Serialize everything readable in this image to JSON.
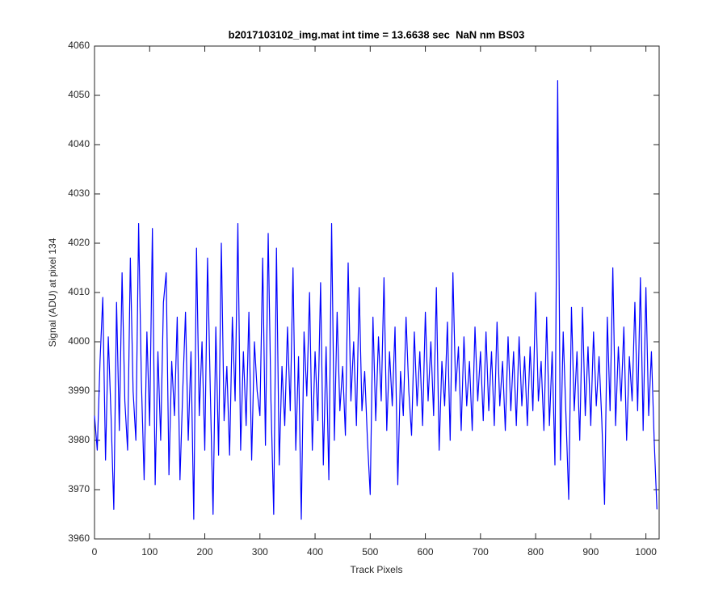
{
  "chart_data": {
    "type": "line",
    "title": "b2017103102_img.mat int time = 13.6638 sec  NaN nm BS03",
    "x_label": "Track Pixels",
    "y_label": "Signal (ADU) at pixel 134",
    "color": "#0000ff",
    "x": [
      0,
      5,
      10,
      15,
      20,
      25,
      30,
      35,
      40,
      45,
      50,
      55,
      60,
      65,
      70,
      75,
      80,
      85,
      90,
      95,
      100,
      105,
      110,
      115,
      120,
      125,
      130,
      135,
      140,
      145,
      150,
      155,
      160,
      165,
      170,
      175,
      180,
      185,
      190,
      195,
      200,
      205,
      210,
      215,
      220,
      225,
      230,
      235,
      240,
      245,
      250,
      255,
      260,
      265,
      270,
      275,
      280,
      285,
      290,
      295,
      300,
      305,
      310,
      315,
      320,
      325,
      330,
      335,
      340,
      345,
      350,
      355,
      360,
      365,
      370,
      375,
      380,
      385,
      390,
      395,
      400,
      405,
      410,
      415,
      420,
      425,
      430,
      435,
      440,
      445,
      450,
      455,
      460,
      465,
      470,
      475,
      480,
      485,
      490,
      495,
      500,
      505,
      510,
      515,
      520,
      525,
      530,
      535,
      540,
      545,
      550,
      555,
      560,
      565,
      570,
      575,
      580,
      585,
      590,
      595,
      600,
      605,
      610,
      615,
      620,
      625,
      630,
      635,
      640,
      645,
      650,
      655,
      660,
      665,
      670,
      675,
      680,
      685,
      690,
      695,
      700,
      705,
      710,
      715,
      720,
      725,
      730,
      735,
      740,
      745,
      750,
      755,
      760,
      765,
      770,
      775,
      780,
      785,
      790,
      795,
      800,
      805,
      810,
      815,
      820,
      825,
      830,
      835,
      840,
      845,
      850,
      855,
      860,
      865,
      870,
      875,
      880,
      885,
      890,
      895,
      900,
      905,
      910,
      915,
      920,
      925,
      930,
      935,
      940,
      945,
      950,
      955,
      960,
      965,
      970,
      975,
      980,
      985,
      990,
      995,
      1000,
      1005,
      1010,
      1015,
      1020
    ],
    "values": [
      3985,
      3978,
      3996,
      4009,
      3976,
      4001,
      3985,
      3966,
      4008,
      3982,
      4014,
      3988,
      3978,
      4017,
      3990,
      3980,
      4024,
      3992,
      3972,
      4002,
      3983,
      4023,
      3971,
      3998,
      3980,
      4008,
      4014,
      3973,
      3996,
      3985,
      4005,
      3972,
      3990,
      4006,
      3980,
      3998,
      3964,
      4019,
      3985,
      4000,
      3978,
      4017,
      3990,
      3965,
      4003,
      3977,
      4020,
      3984,
      3995,
      3977,
      4005,
      3988,
      4024,
      3978,
      3998,
      3983,
      4006,
      3976,
      4000,
      3990,
      3985,
      4017,
      3979,
      4022,
      3988,
      3965,
      4019,
      3975,
      3995,
      3983,
      4003,
      3986,
      4015,
      3978,
      3997,
      3964,
      4002,
      3989,
      4010,
      3978,
      3998,
      3984,
      4012,
      3975,
      3999,
      3972,
      4024,
      3980,
      4006,
      3986,
      3995,
      3981,
      4016,
      3988,
      4000,
      3983,
      4011,
      3986,
      3994,
      3980,
      3969,
      4005,
      3984,
      4001,
      3988,
      4013,
      3982,
      3998,
      3987,
      4003,
      3971,
      3994,
      3985,
      4005,
      3990,
      3981,
      4002,
      3987,
      3998,
      3983,
      4006,
      3988,
      4000,
      3985,
      4011,
      3978,
      3996,
      3987,
      4004,
      3980,
      4014,
      3990,
      3999,
      3982,
      4001,
      3987,
      3996,
      3982,
      4003,
      3988,
      3998,
      3984,
      4002,
      3986,
      3998,
      3983,
      4004,
      3987,
      3996,
      3982,
      4001,
      3986,
      3998,
      3983,
      4001,
      3987,
      3997,
      3983,
      3999,
      3986,
      4010,
      3988,
      3996,
      3982,
      4005,
      3983,
      3998,
      3975,
      4053,
      3976,
      4002,
      3985,
      3968,
      4007,
      3986,
      3998,
      3980,
      4007,
      3985,
      3999,
      3983,
      4002,
      3987,
      3997,
      3984,
      3967,
      4005,
      3986,
      4015,
      3983,
      3999,
      3988,
      4003,
      3980,
      3997,
      3988,
      4008,
      3986,
      4013,
      3982,
      4011,
      3985,
      3998,
      3980,
      3966
    ],
    "xlim": [
      0,
      1024
    ],
    "ylim": [
      3960,
      4060
    ],
    "xticks": [
      0,
      100,
      200,
      300,
      400,
      500,
      600,
      700,
      800,
      900,
      1000
    ],
    "yticks": [
      3960,
      3970,
      3980,
      3990,
      4000,
      4010,
      4020,
      4030,
      4040,
      4050,
      4060
    ],
    "grid": false
  }
}
